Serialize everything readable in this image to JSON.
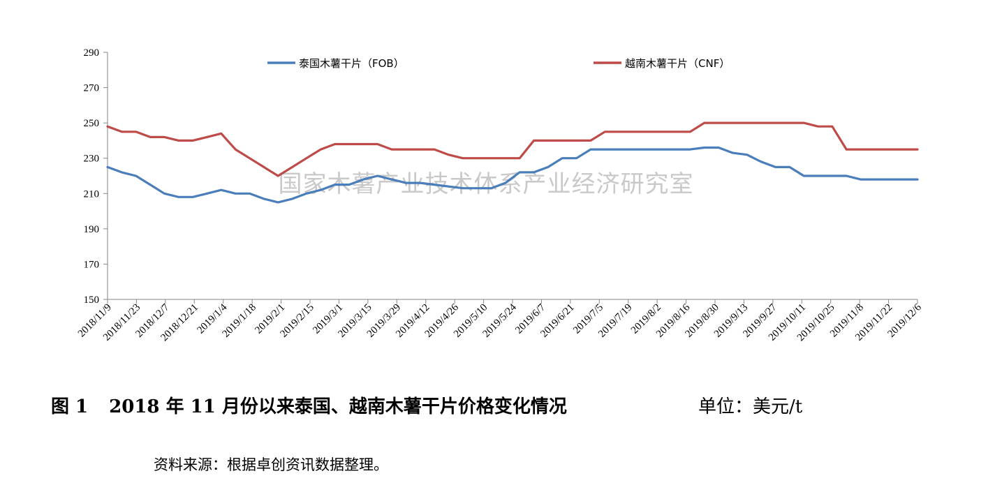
{
  "chart_data": {
    "type": "line",
    "title": "",
    "xlabel": "",
    "ylabel": "",
    "ylim": [
      150,
      290
    ],
    "yticks": [
      150,
      170,
      190,
      210,
      230,
      250,
      270,
      290
    ],
    "grid": false,
    "legend_position": "top",
    "watermark": "国家木薯产业技术体系产业经济研究室",
    "x_tick_labels": [
      "2018/11/9",
      "2018/11/23",
      "2018/12/7",
      "2018/12/21",
      "2019/1/4",
      "2019/1/18",
      "2019/2/1",
      "2019/2/15",
      "2019/3/1",
      "2019/3/15",
      "2019/3/29",
      "2019/4/12",
      "2019/4/26",
      "2019/5/10",
      "2019/5/24",
      "2019/6/7",
      "2019/6/21",
      "2019/7/5",
      "2019/7/19",
      "2019/8/2",
      "2019/8/16",
      "2019/8/30",
      "2019/9/13",
      "2019/9/27",
      "2019/10/11",
      "2019/10/25",
      "2019/11/8",
      "2019/11/22",
      "2019/12/6"
    ],
    "series": [
      {
        "name": "泰国木薯干片（FOB）",
        "color": "#4a7ebb",
        "values": [
          225,
          222,
          220,
          215,
          210,
          208,
          208,
          210,
          212,
          210,
          210,
          207,
          205,
          207,
          210,
          212,
          215,
          215,
          218,
          220,
          218,
          216,
          216,
          215,
          214,
          213,
          213,
          213,
          216,
          222,
          222,
          225,
          230,
          230,
          235,
          235,
          235,
          235,
          235,
          235,
          235,
          235,
          236,
          236,
          233,
          232,
          228,
          225,
          225,
          220,
          220,
          220,
          220,
          218,
          218,
          218,
          218,
          218
        ]
      },
      {
        "name": "越南木薯干片（CNF）",
        "color": "#be4b48",
        "values": [
          248,
          245,
          245,
          242,
          242,
          240,
          240,
          242,
          244,
          235,
          230,
          225,
          220,
          225,
          230,
          235,
          238,
          238,
          238,
          238,
          235,
          235,
          235,
          235,
          232,
          230,
          230,
          230,
          230,
          230,
          240,
          240,
          240,
          240,
          240,
          245,
          245,
          245,
          245,
          245,
          245,
          245,
          250,
          250,
          250,
          250,
          250,
          250,
          250,
          250,
          248,
          248,
          235,
          235,
          235,
          235,
          235,
          235
        ]
      }
    ]
  },
  "caption": {
    "figure_label": "图 1",
    "title": "2018 年 11 月份以来泰国、越南木薯干片价格变化情况",
    "unit": "单位：美元/t"
  },
  "source_note": "资料来源：根据卓创资讯数据整理。"
}
